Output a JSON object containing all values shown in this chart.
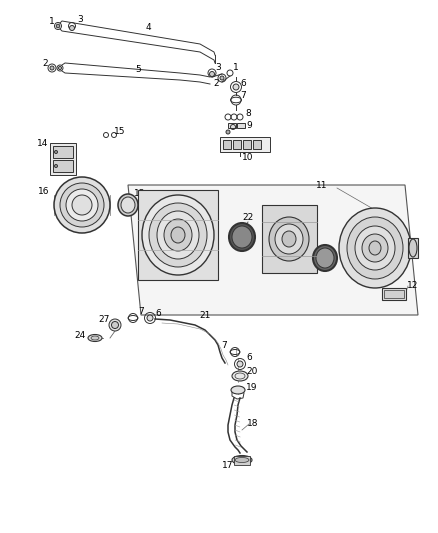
{
  "bg_color": "#ffffff",
  "line_color": "#333333",
  "label_color": "#000000",
  "gray1": "#e8e8e8",
  "gray2": "#d0d0d0",
  "gray3": "#bbbbbb",
  "gray4": "#cccccc",
  "dark_gray": "#555555"
}
